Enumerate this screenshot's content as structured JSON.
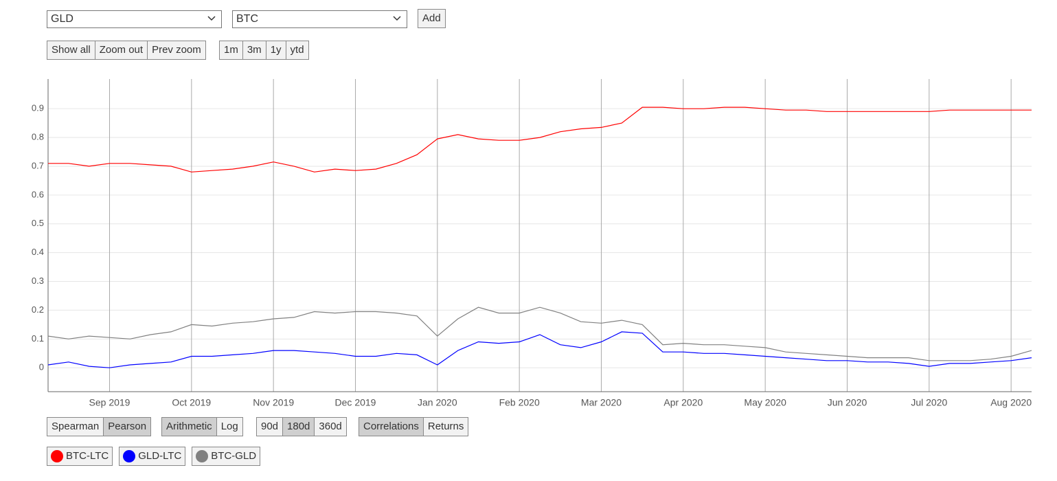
{
  "toolbar": {
    "select_a": "GLD",
    "select_b": "BTC",
    "add_button": "Add",
    "zoom": [
      "Show all",
      "Zoom out",
      "Prev zoom"
    ],
    "range": [
      "1m",
      "3m",
      "1y",
      "ytd"
    ]
  },
  "options": {
    "method": {
      "buttons": [
        "Spearman",
        "Pearson"
      ],
      "selected": 1
    },
    "scale": {
      "buttons": [
        "Arithmetic",
        "Log"
      ],
      "selected": 0
    },
    "window": {
      "buttons": [
        "90d",
        "180d",
        "360d"
      ],
      "selected": 1
    },
    "view": {
      "buttons": [
        "Correlations",
        "Returns"
      ],
      "selected": 0
    }
  },
  "chart_data": {
    "type": "line",
    "categories": [
      null,
      null,
      null,
      "Sep 2019",
      null,
      null,
      null,
      "Oct 2019",
      null,
      null,
      null,
      "Nov 2019",
      null,
      null,
      null,
      "Dec 2019",
      null,
      null,
      null,
      "Jan 2020",
      null,
      null,
      null,
      "Feb 2020",
      null,
      null,
      null,
      "Mar 2020",
      null,
      null,
      null,
      "Apr 2020",
      null,
      null,
      null,
      "May 2020",
      null,
      null,
      null,
      "Jun 2020",
      null,
      null,
      null,
      "Jul 2020",
      null,
      null,
      null,
      "Aug 2020",
      null
    ],
    "ylim": [
      -0.083,
      1.003
    ],
    "yticks": [
      0,
      0.1,
      0.2,
      0.3,
      0.4,
      0.5,
      0.6,
      0.7,
      0.8,
      0.9
    ],
    "grid": true,
    "series": [
      {
        "name": "BTC-LTC",
        "color": "#ff0000",
        "values": [
          0.71,
          0.71,
          0.7,
          0.71,
          0.71,
          0.705,
          0.7,
          0.68,
          0.685,
          0.69,
          0.7,
          0.715,
          0.7,
          0.68,
          0.69,
          0.685,
          0.69,
          0.71,
          0.74,
          0.795,
          0.81,
          0.795,
          0.79,
          0.79,
          0.8,
          0.82,
          0.83,
          0.835,
          0.85,
          0.905,
          0.905,
          0.9,
          0.9,
          0.905,
          0.905,
          0.9,
          0.895,
          0.895,
          0.89,
          0.89,
          0.89,
          0.89,
          0.89,
          0.89,
          0.895,
          0.895,
          0.895,
          0.895,
          0.895
        ]
      },
      {
        "name": "GLD-LTC",
        "color": "#0000ff",
        "values": [
          0.01,
          0.02,
          0.005,
          0.0,
          0.01,
          0.015,
          0.02,
          0.04,
          0.04,
          0.045,
          0.05,
          0.06,
          0.06,
          0.055,
          0.05,
          0.04,
          0.04,
          0.05,
          0.045,
          0.01,
          0.06,
          0.09,
          0.085,
          0.09,
          0.115,
          0.08,
          0.07,
          0.09,
          0.125,
          0.12,
          0.055,
          0.055,
          0.05,
          0.05,
          0.045,
          0.04,
          0.035,
          0.03,
          0.025,
          0.025,
          0.02,
          0.02,
          0.015,
          0.005,
          0.015,
          0.015,
          0.02,
          0.025,
          0.035
        ]
      },
      {
        "name": "BTC-GLD",
        "color": "#808080",
        "values": [
          0.11,
          0.1,
          0.11,
          0.105,
          0.1,
          0.115,
          0.125,
          0.15,
          0.145,
          0.155,
          0.16,
          0.17,
          0.175,
          0.195,
          0.19,
          0.195,
          0.195,
          0.19,
          0.18,
          0.11,
          0.17,
          0.21,
          0.19,
          0.19,
          0.21,
          0.19,
          0.16,
          0.155,
          0.165,
          0.15,
          0.08,
          0.085,
          0.08,
          0.08,
          0.075,
          0.07,
          0.055,
          0.05,
          0.045,
          0.04,
          0.035,
          0.035,
          0.035,
          0.025,
          0.025,
          0.025,
          0.03,
          0.04,
          0.06
        ]
      }
    ]
  }
}
